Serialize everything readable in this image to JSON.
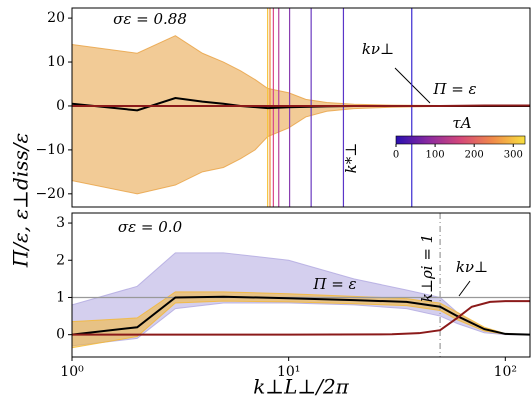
{
  "ylabel": "Π/ε, ε⊥diss/ε",
  "chart_data": [
    {
      "type": "line",
      "annotations": [
        "σε = 0.88",
        "kν⊥",
        "Π = ε",
        "k*⊥",
        "τA"
      ],
      "xlim": [
        1,
        130
      ],
      "ylim": [
        -23,
        22.3
      ],
      "log_x": true,
      "yticks": [
        {
          "value": -20,
          "label": "−20"
        },
        {
          "value": -10,
          "label": "−10"
        },
        0,
        10,
        20
      ],
      "hlines": [
        0
      ],
      "vlines": {
        "x": [
          8,
          8.2,
          8.5,
          9,
          10.1,
          12.7,
          17.9,
          37
        ],
        "colors": [
          "#f6c33a",
          "#f08a3a",
          "#d9468a",
          "#b8419c",
          "#8a3fb0",
          "#6a3ac0",
          "#5a35c8",
          "#3a2ad0"
        ]
      },
      "bands": [
        {
          "color": "#e8a040",
          "x": [
            1,
            2,
            3,
            4,
            5,
            6,
            7,
            8,
            10,
            12,
            15,
            20,
            30,
            50,
            80,
            130
          ],
          "upper": [
            14,
            12,
            16,
            12,
            10,
            8,
            6,
            4,
            3,
            1.5,
            0.8,
            0.4,
            0.2,
            0.1,
            0.05,
            0
          ],
          "lower": [
            -17,
            -20,
            -18,
            -15,
            -14,
            -12,
            -10,
            -7,
            -5,
            -2.5,
            -1.2,
            -0.6,
            -0.3,
            -0.1,
            -0.05,
            0
          ]
        }
      ],
      "series": [
        {
          "color": "#000000",
          "x": [
            1,
            2,
            3,
            4,
            5,
            6,
            8,
            10,
            15,
            20,
            30,
            50,
            80,
            130
          ],
          "values": [
            0.5,
            -1,
            1.8,
            1,
            0.5,
            0,
            -0.5,
            -0.3,
            -0.1,
            0,
            0,
            0,
            0,
            0
          ]
        },
        {
          "color": "#8b1a1a",
          "x": [
            1,
            10,
            30,
            50,
            80,
            130
          ],
          "values": [
            0,
            0,
            0,
            0,
            0.1,
            0.1
          ]
        }
      ],
      "colorbar": {
        "colors": [
          "#2a0fb0",
          "#8a2aa0",
          "#d4487a",
          "#f08a4a",
          "#f8e040"
        ],
        "clim": [
          0,
          330
        ],
        "ticks": [
          0,
          100,
          200,
          300
        ]
      }
    },
    {
      "type": "line",
      "annotations": [
        "σε = 0.0",
        "Π = ε",
        "k⊥ρi = 1",
        "kν⊥"
      ],
      "xlim": [
        1,
        130
      ],
      "ylim": [
        -0.6,
        3.27
      ],
      "log_x": true,
      "xlabel": "k⊥L⊥/2π",
      "xticks": [
        {
          "value": 1,
          "label": "10⁰"
        },
        {
          "value": 10,
          "label": "10¹"
        },
        {
          "value": 100,
          "label": "10²"
        }
      ],
      "yticks": [
        0,
        1,
        2,
        3
      ],
      "hlines": [
        1
      ],
      "vlines": {
        "x": [
          50
        ],
        "colors": [
          "#999999"
        ]
      },
      "bands": [
        {
          "color": "#b0a8e0",
          "x": [
            1,
            2,
            3,
            5,
            10,
            20,
            35,
            50,
            60,
            80,
            100,
            130
          ],
          "upper": [
            0.8,
            1.3,
            2.2,
            2.2,
            2,
            1.5,
            1.2,
            1,
            0.6,
            0.15,
            0.03,
            0
          ],
          "lower": [
            -0.3,
            -0.1,
            0.7,
            0.85,
            0.85,
            0.8,
            0.7,
            0.5,
            0.3,
            0.05,
            0,
            0
          ]
        },
        {
          "color": "#f5b830",
          "x": [
            1,
            2,
            3,
            5,
            10,
            20,
            35,
            50,
            60,
            80,
            100,
            130
          ],
          "upper": [
            0.35,
            0.45,
            1.15,
            1.15,
            1.1,
            1.03,
            0.97,
            0.85,
            0.6,
            0.2,
            0.03,
            0
          ],
          "lower": [
            -0.35,
            -0.05,
            0.85,
            0.9,
            0.88,
            0.83,
            0.78,
            0.65,
            0.4,
            0.1,
            0.01,
            0
          ]
        }
      ],
      "series": [
        {
          "color": "#000000",
          "x": [
            1,
            2,
            3,
            5,
            10,
            20,
            35,
            50,
            60,
            80,
            100,
            130
          ],
          "values": [
            0,
            0.2,
            1,
            1.02,
            0.98,
            0.93,
            0.88,
            0.75,
            0.5,
            0.15,
            0.02,
            0
          ]
        },
        {
          "color": "#8b1a1a",
          "x": [
            1,
            10,
            30,
            40,
            50,
            60,
            70,
            85,
            100,
            130
          ],
          "values": [
            0,
            0,
            0.01,
            0.04,
            0.12,
            0.45,
            0.75,
            0.88,
            0.9,
            0.9
          ]
        }
      ]
    }
  ]
}
